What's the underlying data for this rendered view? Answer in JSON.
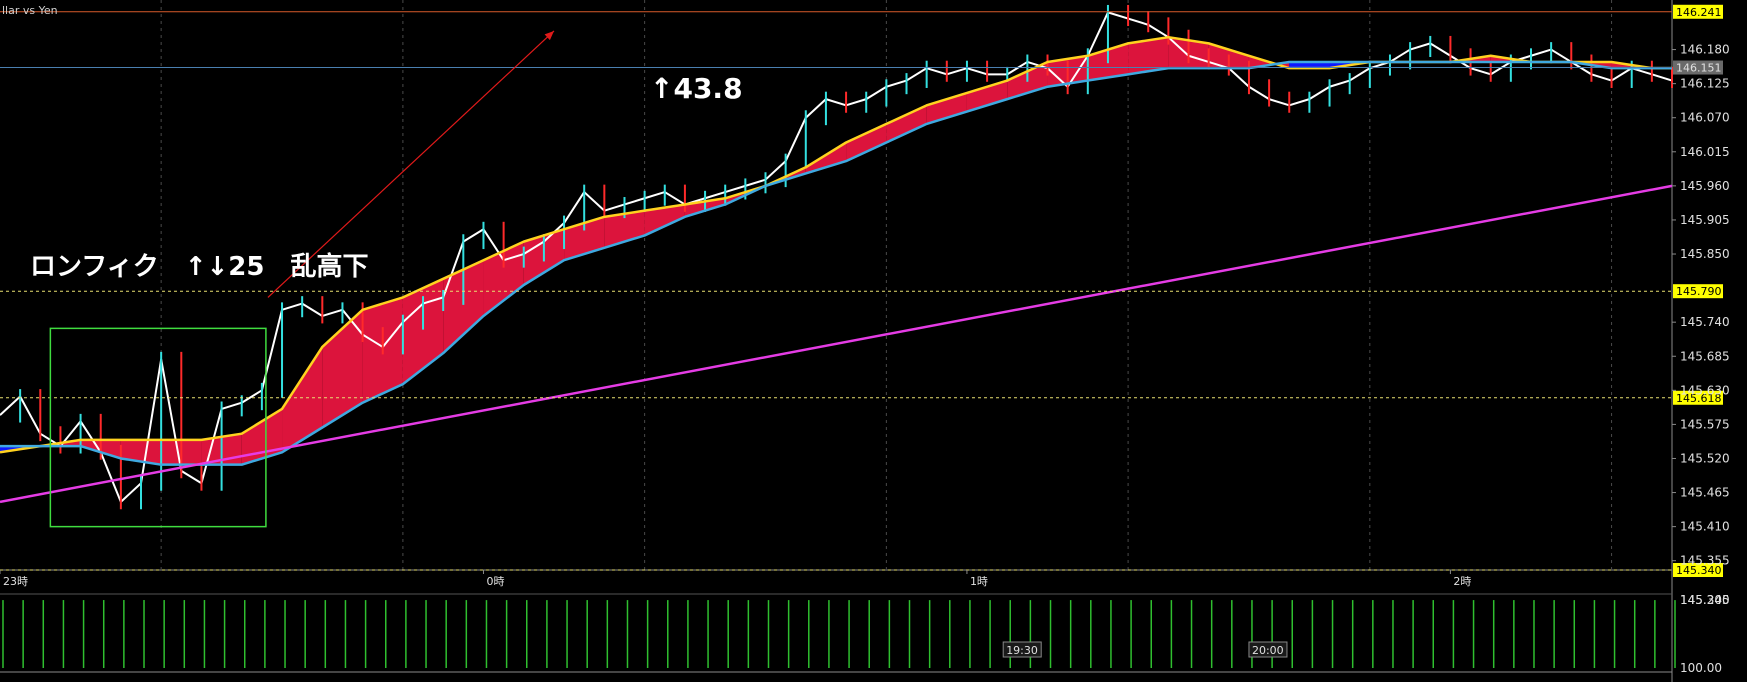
{
  "chart_data": {
    "type": "line",
    "symbol_label": "llar vs Yen",
    "y_axis": {
      "ticks": [
        "146.180",
        "146.125",
        "146.070",
        "146.015",
        "145.960",
        "145.905",
        "145.850",
        "145.740",
        "145.685",
        "145.630",
        "145.575",
        "145.520",
        "145.465",
        "145.410",
        "145.355"
      ],
      "range": [
        145.34,
        146.26
      ]
    },
    "x_axis": {
      "ticks": [
        "23時",
        "0時",
        "1時",
        "2時"
      ],
      "tick_times": [
        0,
        24,
        48,
        72
      ]
    },
    "price_tags": [
      {
        "value": "146.241",
        "style": "yellow",
        "line": "#d75a2a",
        "dashed": false
      },
      {
        "value": "146.151",
        "style": "gray",
        "line": "#4a7fb0",
        "dashed": false
      },
      {
        "value": "145.790",
        "style": "yellow",
        "line": "#e8e070",
        "dashed": true
      },
      {
        "value": "145.618",
        "style": "yellow",
        "line": "#e8e070",
        "dashed": true
      },
      {
        "value": "145.340",
        "style": "yellow",
        "line": "#e8e070",
        "dashed": true
      }
    ],
    "annotations": [
      {
        "text": "↑43.8"
      },
      {
        "text": "ロンフィク　↑↓25　乱高下"
      }
    ],
    "box": {
      "x": [
        2.5,
        13.2
      ],
      "y": [
        145.41,
        145.73
      ],
      "color": "#3fdc3f"
    },
    "arrow": {
      "from": [
        13.3,
        145.78
      ],
      "to": [
        27.5,
        146.21
      ],
      "color": "#e01a1a"
    },
    "series": [
      {
        "role": "price",
        "color": "#ffffff",
        "x": [
          0,
          1,
          2,
          3,
          4,
          5,
          6,
          7,
          8,
          9,
          10,
          11,
          12,
          13,
          14,
          15,
          16,
          17,
          18,
          19,
          20,
          21,
          22,
          23,
          24,
          25,
          26,
          27,
          28,
          29,
          30,
          31,
          32,
          33,
          34,
          35,
          36,
          37,
          38,
          39,
          40,
          41,
          42,
          43,
          44,
          45,
          46,
          47,
          48,
          49,
          50,
          51,
          52,
          53,
          54,
          55,
          56,
          57,
          58,
          59,
          60,
          61,
          62,
          63,
          64,
          65,
          66,
          67,
          68,
          69,
          70,
          71,
          72,
          73,
          74,
          75,
          76,
          77,
          78,
          79,
          80,
          81,
          82,
          83
        ],
        "values": [
          145.59,
          145.62,
          145.56,
          145.54,
          145.58,
          145.53,
          145.45,
          145.48,
          145.68,
          145.5,
          145.48,
          145.6,
          145.61,
          145.63,
          145.76,
          145.77,
          145.75,
          145.76,
          145.72,
          145.7,
          145.74,
          145.77,
          145.78,
          145.87,
          145.89,
          145.84,
          145.85,
          145.87,
          145.9,
          145.95,
          145.92,
          145.93,
          145.94,
          145.95,
          145.93,
          145.94,
          145.95,
          145.96,
          145.97,
          146.0,
          146.07,
          146.1,
          146.09,
          146.1,
          146.12,
          146.13,
          146.15,
          146.14,
          146.15,
          146.14,
          146.14,
          146.16,
          146.15,
          146.12,
          146.17,
          146.24,
          146.23,
          146.22,
          146.2,
          146.17,
          146.16,
          146.15,
          146.12,
          146.1,
          146.09,
          146.1,
          146.12,
          146.13,
          146.15,
          146.16,
          146.18,
          146.19,
          146.17,
          146.15,
          146.14,
          146.16,
          146.17,
          146.18,
          146.16,
          146.14,
          146.13,
          146.15,
          146.14,
          146.13
        ]
      },
      {
        "role": "fast-ma",
        "color": "#ffd21f",
        "x": [
          0,
          2,
          4,
          6,
          8,
          10,
          12,
          14,
          16,
          18,
          20,
          22,
          24,
          26,
          28,
          30,
          32,
          34,
          36,
          38,
          40,
          42,
          44,
          46,
          48,
          50,
          52,
          54,
          56,
          58,
          60,
          62,
          64,
          66,
          68,
          70,
          72,
          74,
          76,
          78,
          80,
          82,
          83
        ],
        "values": [
          145.53,
          145.54,
          145.55,
          145.55,
          145.55,
          145.55,
          145.56,
          145.6,
          145.7,
          145.76,
          145.78,
          145.81,
          145.84,
          145.87,
          145.89,
          145.91,
          145.92,
          145.93,
          145.94,
          145.96,
          145.99,
          146.03,
          146.06,
          146.09,
          146.11,
          146.13,
          146.16,
          146.17,
          146.19,
          146.2,
          146.19,
          146.17,
          146.15,
          146.15,
          146.16,
          146.16,
          146.16,
          146.17,
          146.16,
          146.16,
          146.16,
          146.15,
          146.15
        ]
      },
      {
        "role": "slow-ma",
        "color": "#3fa9e0",
        "x": [
          0,
          2,
          4,
          6,
          8,
          10,
          12,
          14,
          16,
          18,
          20,
          22,
          24,
          26,
          28,
          30,
          32,
          34,
          36,
          38,
          40,
          42,
          44,
          46,
          48,
          50,
          52,
          54,
          56,
          58,
          60,
          62,
          64,
          66,
          68,
          70,
          72,
          74,
          76,
          78,
          80,
          82,
          83
        ],
        "values": [
          145.54,
          145.54,
          145.54,
          145.52,
          145.51,
          145.51,
          145.51,
          145.53,
          145.57,
          145.61,
          145.64,
          145.69,
          145.75,
          145.8,
          145.84,
          145.86,
          145.88,
          145.91,
          145.93,
          145.96,
          145.98,
          146.0,
          146.03,
          146.06,
          146.08,
          146.1,
          146.12,
          146.13,
          146.14,
          146.15,
          146.15,
          146.15,
          146.16,
          146.16,
          146.16,
          146.16,
          146.16,
          146.16,
          146.16,
          146.16,
          146.15,
          146.15,
          146.15
        ]
      },
      {
        "role": "long-ma",
        "color": "#e53ce5",
        "x": [
          0,
          83
        ],
        "values": [
          145.45,
          145.96
        ]
      }
    ],
    "volume": {
      "range": [
        100.0,
        145.3
      ],
      "ticks": [
        "145.300",
        "145.245",
        "100.00"
      ],
      "color": "#2fbf2f",
      "values": [
        145.24,
        145.23,
        145.25,
        145.26,
        145.24,
        145.27,
        145.28,
        145.28,
        145.27,
        145.26,
        145.28,
        145.27,
        145.25,
        145.26,
        145.24,
        145.24,
        145.25,
        145.25,
        145.24,
        145.23,
        145.24,
        145.25,
        145.24,
        145.24,
        145.23,
        145.24,
        145.24,
        145.23,
        145.24,
        145.25,
        145.24,
        145.23,
        145.24,
        145.23,
        145.24,
        145.24,
        145.24,
        145.23,
        145.24,
        145.24,
        145.24,
        145.25,
        145.24,
        145.24,
        145.24,
        145.24,
        145.23,
        145.24,
        145.25,
        145.24,
        145.24,
        145.24,
        145.24,
        145.24,
        145.24,
        145.25,
        145.24,
        145.24,
        145.23,
        145.24,
        145.24,
        145.24,
        145.24,
        145.24,
        145.24,
        145.24,
        145.25,
        145.24,
        145.24,
        145.24,
        145.24,
        145.24,
        145.24,
        145.24,
        145.25,
        145.24,
        145.24,
        145.24,
        145.23,
        145.24,
        145.24,
        145.24,
        145.24,
        145.24
      ],
      "time_tags": [
        {
          "text": "19:30",
          "x": 49.8
        },
        {
          "text": "20:00",
          "x": 62
        }
      ]
    },
    "grid": true,
    "fill_colors": {
      "bull": "#dc143c",
      "bear": "#0d18ff"
    }
  }
}
